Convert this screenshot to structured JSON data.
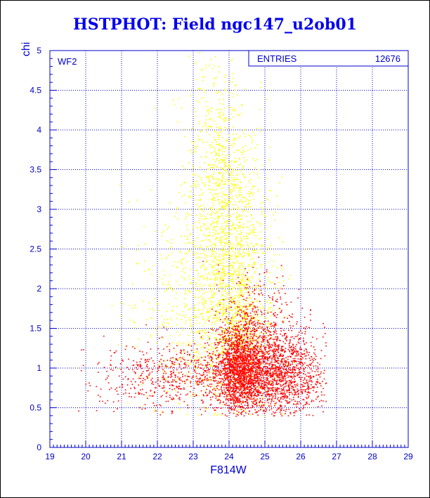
{
  "chart_data": {
    "type": "scatter",
    "title": "HSTPHOT: Field ngc147_u2ob01",
    "xlabel": "F814W",
    "ylabel": "chi",
    "xlim": [
      19,
      29
    ],
    "ylim": [
      0,
      5
    ],
    "x_ticks": [
      "19",
      "20",
      "21",
      "22",
      "23",
      "24",
      "25",
      "26",
      "27",
      "28",
      "29"
    ],
    "y_ticks": [
      "0",
      "0.5",
      "1",
      "1.5",
      "2",
      "2.5",
      "3",
      "3.5",
      "4",
      "4.5",
      "5"
    ],
    "grid": true,
    "panel_label": "WF2",
    "stats_box": {
      "label": "ENTRIES",
      "value": "12676",
      "placement": "top-right"
    },
    "colors": {
      "axis": "#0000cc",
      "grid": "#0000cc",
      "good": "#ff0000",
      "poor": "#ffff00",
      "title": "#0000ee"
    },
    "series": [
      {
        "color": "#ffff00",
        "components": [
          {
            "cx": 24.05,
            "cy": 2.3,
            "sx": 0.55,
            "sy": 0.9,
            "weight": 0.55
          },
          {
            "cx": 23.6,
            "cy": 3.6,
            "sx": 0.4,
            "sy": 0.7,
            "weight": 0.15
          },
          {
            "cx": 23.0,
            "cy": 1.8,
            "sx": 0.9,
            "sy": 0.7,
            "weight": 0.2
          },
          {
            "cx": 24.3,
            "cy": 1.3,
            "sx": 0.5,
            "sy": 0.3,
            "weight": 0.1
          }
        ],
        "count": 2700
      },
      {
        "color": "#ff0000",
        "components": [
          {
            "cx": 24.3,
            "cy": 1.0,
            "sx": 0.35,
            "sy": 0.28,
            "weight": 0.35
          },
          {
            "cx": 25.3,
            "cy": 0.95,
            "sx": 0.7,
            "sy": 0.28,
            "weight": 0.4
          },
          {
            "cx": 22.6,
            "cy": 0.9,
            "sx": 1.1,
            "sy": 0.22,
            "weight": 0.15
          },
          {
            "cx": 24.8,
            "cy": 1.5,
            "sx": 0.6,
            "sy": 0.35,
            "weight": 0.1
          }
        ],
        "count": 4200
      }
    ]
  }
}
